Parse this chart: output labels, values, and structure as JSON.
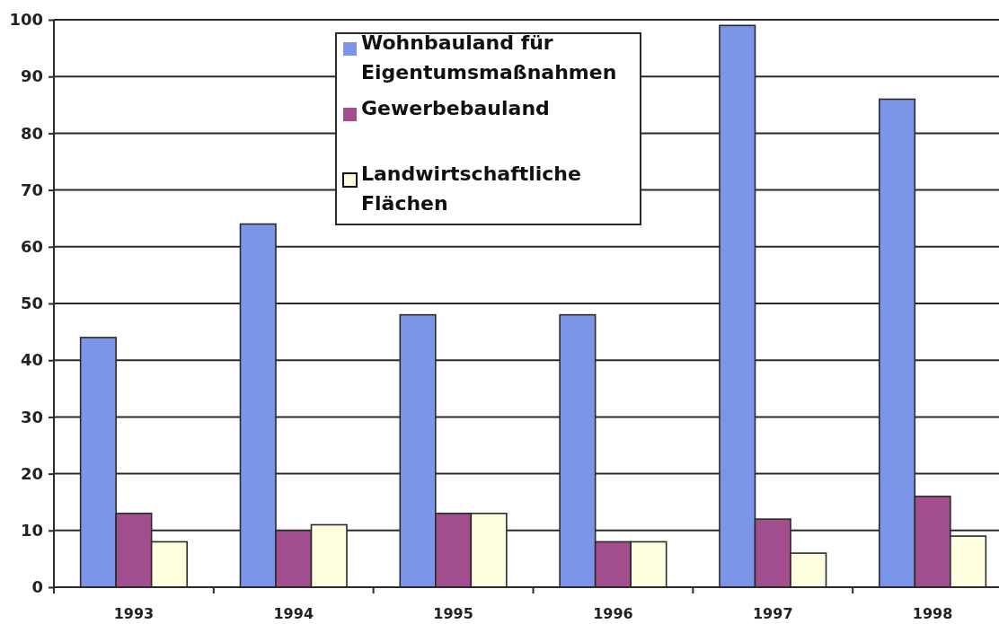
{
  "chart_data": {
    "type": "bar",
    "categories": [
      "1993",
      "1994",
      "1995",
      "1996",
      "1997",
      "1998"
    ],
    "series": [
      {
        "name": "Wohnbauland für Eigentumsmaßnahmen",
        "color": "#7b96e8",
        "values": [
          44,
          64,
          48,
          48,
          99,
          86
        ]
      },
      {
        "name": "Gewerbebauland",
        "color": "#a24d8e",
        "values": [
          13,
          10,
          13,
          8,
          12,
          16
        ]
      },
      {
        "name": "Landwirtschaftliche Flächen",
        "color": "#ffffe0",
        "values": [
          8,
          11,
          13,
          8,
          6,
          9
        ]
      }
    ],
    "ylim": [
      0,
      100
    ],
    "yticks": [
      0,
      10,
      20,
      30,
      40,
      50,
      60,
      70,
      80,
      90,
      100
    ],
    "grid": "y",
    "legend": "top"
  }
}
